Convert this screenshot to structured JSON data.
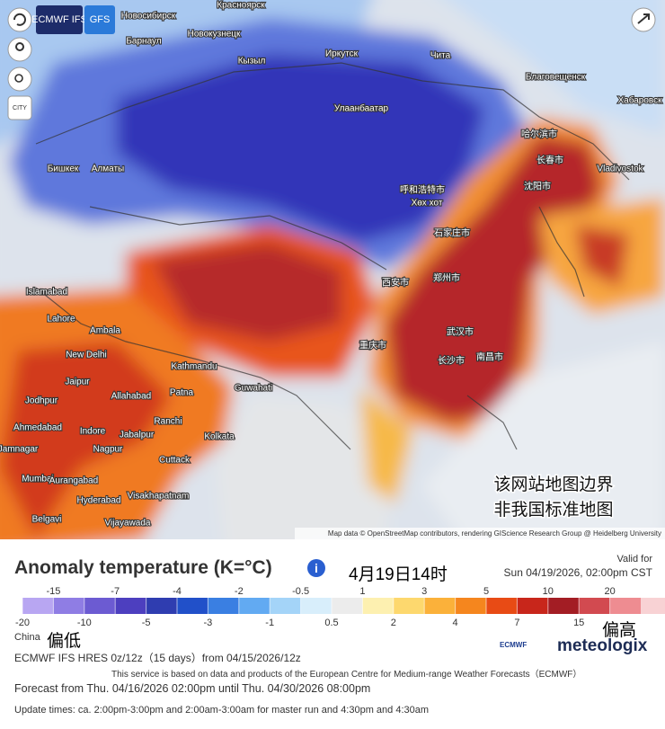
{
  "map": {
    "buttons": {
      "model": "ECMWF IFS",
      "alt_model": "GFS",
      "city": "CITY"
    },
    "labels": [
      "Новосибирск",
      "Красноярск",
      "Барнаул",
      "Новокузнецк",
      "Кызыл",
      "Иркутск",
      "Чита",
      "Благовещенск",
      "Хабаровск",
      "Улаанбаатар",
      "Бишкек",
      "Алматы",
      "哈尔滨市",
      "长春市",
      "沈阳市",
      "Vladivostok",
      "呼和浩特市",
      "Хөх хот",
      "石家庄市",
      "郑州市",
      "西安市",
      "武汉市",
      "长沙市",
      "重庆市",
      "南昌市",
      "Islamabad",
      "Lahore",
      "Ambala",
      "New Delhi",
      "Kathmandu",
      "Jaipur",
      "Jodhpur",
      "Allahabad",
      "Patna",
      "Guwahati",
      "Ahmedabad",
      "Indore",
      "Jabalpur",
      "Ranchi",
      "Kolkata",
      "Jamnagar",
      "Nagpur",
      "Cuttack",
      "Mumbai",
      "Aurangabad",
      "Hyderabad",
      "Visakhapatnam",
      "Belgavi",
      "Vijayawada"
    ],
    "notice": [
      "该网站地图边界",
      "非我国标准地图"
    ],
    "attribution": "Map data © OpenStreetMap contributors, rendering GIScience Research Group @ Heidelberg University"
  },
  "legend": {
    "title": "Anomaly temperature (K=°C)",
    "date_note": "4月19日14时",
    "valid_label": "Valid for",
    "valid_time": "Sun 04/19/2026, 02:00pm CST",
    "ticks": [
      -20,
      -15,
      -10,
      -7,
      -5,
      -4,
      -3,
      -2,
      -1,
      -0.5,
      0.5,
      1,
      2,
      3,
      4,
      5,
      7,
      10,
      15,
      20
    ],
    "colors": [
      "#b8a6f2",
      "#8f7de4",
      "#6c5bd2",
      "#4d3fbf",
      "#2f3db0",
      "#2150c9",
      "#3a7fe2",
      "#62aaf2",
      "#a4d4f8",
      "#d8eefb",
      "#ececec",
      "#fdf0b0",
      "#fdd86e",
      "#fbb13a",
      "#f5861e",
      "#e84b15",
      "#c8261b",
      "#a31d24",
      "#d24a50",
      "#ee8c91",
      "#f8d2d4"
    ],
    "low": "偏低",
    "high": "偏高",
    "region": "China",
    "info": [
      "ECMWF IFS HRES 0z/12z（15 days）from 04/15/2026/12z",
      "This service is based on data and products of the European Centre for Medium-range Weather Forecasts（ECMWF）",
      "Forecast from Thu. 04/16/2026 02:00pm until Thu. 04/30/2026 08:00pm",
      "Update times: ca. 2:00pm-3:00pm and 2:00am-3:00am for master run and 4:30pm and 4:30am"
    ],
    "logos": [
      "ECMWF",
      "meteologix"
    ]
  }
}
